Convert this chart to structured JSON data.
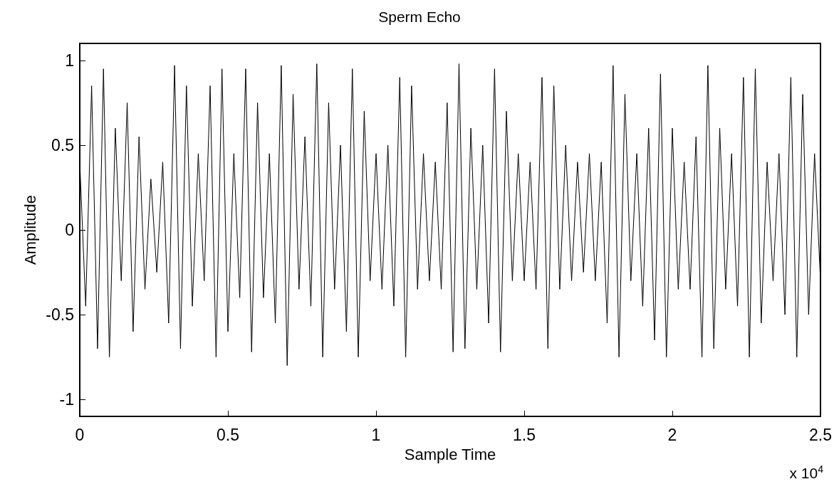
{
  "chart_data": {
    "type": "line",
    "title": "Sperm Echo",
    "xlabel": "Sample Time",
    "ylabel": "Amplitude",
    "annotations": [
      "x 10$^{4}$"
    ],
    "xlim": [
      0,
      2.5
    ],
    "xticks": [
      0,
      0.5,
      1,
      1.5,
      2,
      2.5
    ],
    "ylim": [
      -1.1,
      1.1
    ],
    "yticks": [
      -1,
      -0.5,
      0,
      0.5,
      1
    ],
    "marker": "none",
    "line_style": "solid",
    "series": [
      {
        "color": "#000000",
        "x": [
          0,
          0.02,
          0.04,
          0.06,
          0.08,
          0.1,
          0.12,
          0.14,
          0.16,
          0.18,
          0.2,
          0.22,
          0.24,
          0.26,
          0.28,
          0.3,
          0.32,
          0.34,
          0.36,
          0.38,
          0.4,
          0.42,
          0.44,
          0.46,
          0.48,
          0.5,
          0.52,
          0.54,
          0.56,
          0.58,
          0.6,
          0.62,
          0.64,
          0.66,
          0.68,
          0.7,
          0.72,
          0.74,
          0.76,
          0.78,
          0.8,
          0.82,
          0.84,
          0.86,
          0.88,
          0.9,
          0.92,
          0.94,
          0.96,
          0.98,
          1,
          1.02,
          1.04,
          1.06,
          1.08,
          1.1,
          1.12,
          1.14,
          1.16,
          1.18,
          1.2,
          1.22,
          1.24,
          1.26,
          1.28,
          1.3,
          1.32,
          1.34,
          1.36,
          1.38,
          1.4,
          1.42,
          1.44,
          1.46,
          1.48,
          1.5,
          1.52,
          1.54,
          1.56,
          1.58,
          1.6,
          1.62,
          1.64,
          1.66,
          1.68,
          1.7,
          1.72,
          1.74,
          1.76,
          1.78,
          1.8,
          1.82,
          1.84,
          1.86,
          1.88,
          1.9,
          1.92,
          1.94,
          1.96,
          1.98,
          2,
          2.02,
          2.04,
          2.06,
          2.08,
          2.1,
          2.12,
          2.14,
          2.16,
          2.18,
          2.2,
          2.22,
          2.24,
          2.26,
          2.28,
          2.3,
          2.32,
          2.34,
          2.36,
          2.38,
          2.4,
          2.42,
          2.44,
          2.46,
          2.48,
          2.5
        ],
        "values": [
          0.4,
          -0.45,
          0.85,
          -0.7,
          0.95,
          -0.75,
          0.6,
          -0.3,
          0.75,
          -0.6,
          0.55,
          -0.35,
          0.3,
          -0.25,
          0.4,
          -0.55,
          0.97,
          -0.7,
          0.85,
          -0.45,
          0.45,
          -0.3,
          0.85,
          -0.75,
          0.95,
          -0.6,
          0.45,
          -0.4,
          0.95,
          -0.72,
          0.75,
          -0.4,
          0.45,
          -0.55,
          0.97,
          -0.8,
          0.8,
          -0.35,
          0.55,
          -0.45,
          0.98,
          -0.75,
          0.75,
          -0.35,
          0.5,
          -0.6,
          0.95,
          -0.75,
          0.7,
          -0.3,
          0.45,
          -0.35,
          0.5,
          -0.45,
          0.9,
          -0.75,
          0.85,
          -0.35,
          0.45,
          -0.3,
          0.4,
          -0.35,
          0.75,
          -0.72,
          0.98,
          -0.7,
          0.6,
          -0.35,
          0.5,
          -0.55,
          0.95,
          -0.72,
          0.7,
          -0.3,
          0.45,
          -0.3,
          0.4,
          -0.35,
          0.9,
          -0.7,
          0.85,
          -0.35,
          0.5,
          -0.3,
          0.4,
          -0.25,
          0.45,
          -0.3,
          0.4,
          -0.55,
          0.97,
          -0.75,
          0.8,
          -0.3,
          0.45,
          -0.45,
          0.6,
          -0.65,
          0.92,
          -0.75,
          0.6,
          -0.35,
          0.4,
          -0.35,
          0.55,
          -0.75,
          0.97,
          -0.7,
          0.6,
          -0.35,
          0.45,
          -0.45,
          0.9,
          -0.75,
          0.95,
          -0.55,
          0.4,
          -0.3,
          0.45,
          -0.5,
          0.9,
          -0.75,
          0.8,
          -0.5,
          0.45,
          -0.3
        ]
      }
    ]
  }
}
